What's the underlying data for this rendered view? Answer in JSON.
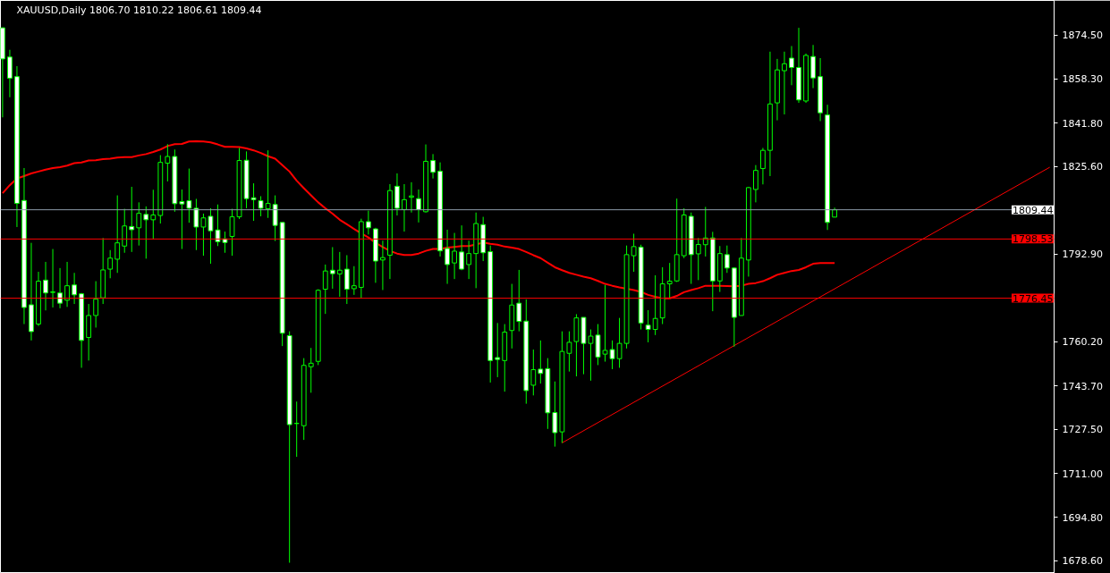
{
  "chart_data": {
    "type": "candlestick",
    "title": "XAUUSD,Daily  1806.70 1810.22 1806.61 1809.44",
    "categories": [
      null,
      null,
      null,
      null,
      null,
      null,
      null,
      null,
      null,
      null,
      null,
      null,
      null,
      null,
      null,
      null,
      null,
      null,
      null,
      null,
      null,
      null,
      null,
      null,
      null,
      null,
      null,
      null,
      null,
      null,
      null,
      null,
      null,
      null,
      null,
      null,
      null,
      null,
      null,
      null,
      null,
      null,
      null,
      null,
      null,
      null,
      null,
      null,
      null,
      null,
      null,
      null,
      null,
      null,
      null,
      null,
      null,
      null,
      null,
      null,
      null,
      null,
      null,
      null,
      null,
      null,
      null,
      null,
      null,
      null,
      null,
      null,
      null,
      null,
      null,
      null,
      null,
      null,
      null,
      null,
      null,
      null,
      null,
      null,
      null,
      null,
      null,
      null,
      null,
      null,
      null,
      null,
      null,
      null,
      null,
      null,
      null,
      null,
      null,
      null,
      null,
      null,
      null,
      null,
      null,
      null,
      null,
      null,
      null,
      null,
      null,
      null,
      null,
      null,
      null,
      null,
      null,
      null,
      null,
      null,
      null,
      null,
      null,
      null,
      null,
      null,
      null,
      null,
      null,
      null,
      null,
      null,
      null,
      null,
      null,
      null,
      null,
      null,
      null,
      null,
      null,
      null,
      null,
      null,
      null,
      null,
      null
    ],
    "color": "#00ff00",
    "ohlc": [
      [
        1877.3,
        1877.3,
        1843.9,
        1865.7
      ],
      [
        1866.4,
        1869.1,
        1851.4,
        1858.5
      ],
      [
        1859.1,
        1863.0,
        1803.0,
        1811.8
      ],
      [
        1812.9,
        1825.0,
        1766.8,
        1773.0
      ],
      [
        1774.0,
        1797.1,
        1760.7,
        1764.0
      ],
      [
        1766.8,
        1786.3,
        1766.1,
        1782.8
      ],
      [
        1783.2,
        1790.0,
        1771.9,
        1778.4
      ],
      [
        1778.6,
        1794.8,
        1773.0,
        1778.8
      ],
      [
        1778.4,
        1787.7,
        1772.7,
        1774.6
      ],
      [
        1775.7,
        1790.0,
        1773.2,
        1781.1
      ],
      [
        1781.4,
        1785.9,
        1774.3,
        1777.7
      ],
      [
        1778.1,
        1778.4,
        1750.5,
        1760.7
      ],
      [
        1761.8,
        1774.3,
        1753.2,
        1770.0
      ],
      [
        1770.0,
        1782.8,
        1765.5,
        1776.1
      ],
      [
        1776.6,
        1798.9,
        1774.3,
        1787.0
      ],
      [
        1787.3,
        1794.4,
        1783.9,
        1791.4
      ],
      [
        1791.0,
        1814.8,
        1785.9,
        1797.1
      ],
      [
        1795.9,
        1809.8,
        1793.4,
        1803.4
      ],
      [
        1803.2,
        1818.0,
        1793.7,
        1802.0
      ],
      [
        1802.7,
        1812.2,
        1796.1,
        1808.1
      ],
      [
        1807.7,
        1810.7,
        1791.2,
        1805.7
      ],
      [
        1805.7,
        1816.9,
        1798.6,
        1807.5
      ],
      [
        1807.3,
        1829.8,
        1804.3,
        1827.1
      ],
      [
        1826.8,
        1833.9,
        1820.0,
        1829.3
      ],
      [
        1829.3,
        1831.9,
        1808.7,
        1811.7
      ],
      [
        1812.5,
        1817.0,
        1794.8,
        1811.6
      ],
      [
        1812.8,
        1824.8,
        1804.6,
        1810.0
      ],
      [
        1810.0,
        1813.5,
        1794.4,
        1803.0
      ],
      [
        1803.0,
        1808.0,
        1792.3,
        1806.4
      ],
      [
        1807.0,
        1810.0,
        1789.3,
        1801.6
      ],
      [
        1801.9,
        1811.4,
        1795.9,
        1797.5
      ],
      [
        1798.6,
        1801.3,
        1793.4,
        1797.2
      ],
      [
        1799.5,
        1809.8,
        1792.3,
        1806.8
      ],
      [
        1806.8,
        1832.5,
        1806.0,
        1827.8
      ],
      [
        1827.9,
        1831.2,
        1810.0,
        1813.6
      ],
      [
        1813.9,
        1819.3,
        1805.3,
        1813.2
      ],
      [
        1812.8,
        1814.5,
        1807.0,
        1810.0
      ],
      [
        1809.8,
        1831.6,
        1806.4,
        1811.8
      ],
      [
        1811.4,
        1814.8,
        1797.8,
        1803.6
      ],
      [
        1804.7,
        1804.7,
        1758.6,
        1763.4
      ],
      [
        1762.5,
        1764.1,
        1677.8,
        1729.3
      ],
      [
        1729.7,
        1737.9,
        1717.3,
        1729.8
      ],
      [
        1728.9,
        1754.1,
        1723.6,
        1751.4
      ],
      [
        1750.9,
        1757.9,
        1741.2,
        1752.2
      ],
      [
        1752.9,
        1779.8,
        1751.5,
        1779.4
      ],
      [
        1779.8,
        1789.0,
        1770.6,
        1786.6
      ],
      [
        1786.9,
        1795.5,
        1780.0,
        1785.6
      ],
      [
        1785.5,
        1793.7,
        1777.0,
        1786.9
      ],
      [
        1787.3,
        1792.5,
        1774.3,
        1779.8
      ],
      [
        1780.0,
        1788.4,
        1777.7,
        1781.1
      ],
      [
        1780.5,
        1806.1,
        1776.4,
        1805.0
      ],
      [
        1805.0,
        1809.1,
        1800.2,
        1802.7
      ],
      [
        1802.3,
        1802.7,
        1782.2,
        1790.3
      ],
      [
        1790.7,
        1797.9,
        1779.5,
        1791.6
      ],
      [
        1792.5,
        1819.0,
        1783.6,
        1816.6
      ],
      [
        1818.2,
        1823.0,
        1807.3,
        1810.0
      ],
      [
        1809.5,
        1819.0,
        1801.3,
        1813.2
      ],
      [
        1814.1,
        1819.7,
        1808.4,
        1814.6
      ],
      [
        1813.6,
        1817.0,
        1804.7,
        1809.5
      ],
      [
        1808.7,
        1833.8,
        1808.4,
        1827.5
      ],
      [
        1827.8,
        1830.2,
        1821.1,
        1823.4
      ],
      [
        1823.8,
        1827.1,
        1792.0,
        1794.1
      ],
      [
        1795.0,
        1802.0,
        1781.8,
        1789.0
      ],
      [
        1789.6,
        1800.8,
        1783.6,
        1794.0
      ],
      [
        1793.7,
        1803.6,
        1786.9,
        1787.3
      ],
      [
        1789.0,
        1797.9,
        1783.6,
        1793.1
      ],
      [
        1793.1,
        1808.4,
        1780.2,
        1804.3
      ],
      [
        1803.9,
        1806.8,
        1790.3,
        1793.4
      ],
      [
        1793.8,
        1796.1,
        1745.0,
        1753.2
      ],
      [
        1754.3,
        1767.2,
        1747.0,
        1753.6
      ],
      [
        1753.2,
        1766.8,
        1741.6,
        1763.8
      ],
      [
        1764.4,
        1781.8,
        1757.7,
        1773.9
      ],
      [
        1774.6,
        1787.0,
        1764.1,
        1767.8
      ],
      [
        1767.9,
        1776.0,
        1737.1,
        1742.0
      ],
      [
        1744.0,
        1757.3,
        1740.2,
        1749.8
      ],
      [
        1750.0,
        1760.7,
        1744.6,
        1748.4
      ],
      [
        1750.2,
        1754.1,
        1727.7,
        1733.7
      ],
      [
        1733.8,
        1745.4,
        1721.1,
        1726.3
      ],
      [
        1726.6,
        1764.1,
        1722.5,
        1756.6
      ],
      [
        1755.9,
        1764.1,
        1749.1,
        1760.0
      ],
      [
        1760.3,
        1770.5,
        1747.3,
        1769.1
      ],
      [
        1769.3,
        1769.3,
        1748.1,
        1759.6
      ],
      [
        1759.6,
        1764.8,
        1745.7,
        1762.3
      ],
      [
        1762.7,
        1766.8,
        1751.5,
        1754.5
      ],
      [
        1755.6,
        1781.4,
        1752.8,
        1757.0
      ],
      [
        1757.3,
        1760.7,
        1750.0,
        1753.9
      ],
      [
        1753.9,
        1769.1,
        1750.5,
        1759.6
      ],
      [
        1759.6,
        1796.1,
        1757.7,
        1792.7
      ],
      [
        1792.3,
        1800.5,
        1786.3,
        1795.7
      ],
      [
        1795.5,
        1796.4,
        1764.8,
        1767.2
      ],
      [
        1766.4,
        1772.0,
        1760.0,
        1764.8
      ],
      [
        1764.8,
        1785.0,
        1762.7,
        1768.9
      ],
      [
        1769.1,
        1788.0,
        1766.8,
        1781.8
      ],
      [
        1781.8,
        1789.6,
        1776.4,
        1782.8
      ],
      [
        1782.9,
        1813.6,
        1782.5,
        1792.7
      ],
      [
        1792.3,
        1810.0,
        1791.4,
        1807.5
      ],
      [
        1807.0,
        1808.4,
        1781.8,
        1792.7
      ],
      [
        1793.0,
        1798.9,
        1783.2,
        1796.5
      ],
      [
        1796.4,
        1810.5,
        1792.0,
        1798.9
      ],
      [
        1798.9,
        1801.2,
        1771.6,
        1782.9
      ],
      [
        1782.9,
        1795.9,
        1778.8,
        1793.1
      ],
      [
        1792.7,
        1796.1,
        1785.9,
        1787.7
      ],
      [
        1787.7,
        1788.0,
        1758.4,
        1769.3
      ],
      [
        1770.0,
        1798.9,
        1770.0,
        1791.4
      ],
      [
        1790.7,
        1818.0,
        1784.5,
        1817.7
      ],
      [
        1817.0,
        1826.1,
        1812.2,
        1824.1
      ],
      [
        1824.8,
        1832.5,
        1818.9,
        1831.6
      ],
      [
        1831.6,
        1868.4,
        1822.0,
        1848.9
      ],
      [
        1849.3,
        1865.7,
        1842.8,
        1861.6
      ],
      [
        1861.3,
        1868.4,
        1845.0,
        1863.9
      ],
      [
        1866.0,
        1870.5,
        1855.9,
        1862.5
      ],
      [
        1862.5,
        1877.3,
        1849.3,
        1850.4
      ],
      [
        1850.0,
        1867.7,
        1849.3,
        1867.0
      ],
      [
        1866.6,
        1870.9,
        1854.8,
        1858.6
      ],
      [
        1859.1,
        1866.0,
        1842.5,
        1845.6
      ],
      [
        1844.8,
        1848.6,
        1801.9,
        1804.7
      ],
      [
        1806.7,
        1810.22,
        1806.61,
        1809.44
      ],
      null,
      null,
      null,
      null,
      null,
      null,
      null,
      null,
      null,
      null,
      null,
      null,
      null,
      null,
      null,
      null,
      null,
      null,
      null,
      null,
      null,
      null,
      null,
      null,
      null,
      null,
      null,
      null,
      null,
      null
    ],
    "series": [
      {
        "type": "line",
        "color": "#ff0000",
        "values": [
          1815.6,
          1818.6,
          1821.1,
          1822.0,
          1823.0,
          1823.7,
          1824.4,
          1825.0,
          1825.3,
          1825.9,
          1826.8,
          1827.1,
          1827.8,
          1827.9,
          1828.3,
          1828.5,
          1828.9,
          1829.1,
          1829.1,
          1829.7,
          1830.2,
          1831.0,
          1831.9,
          1833.2,
          1833.9,
          1834.0,
          1834.9,
          1835.0,
          1834.9,
          1834.6,
          1833.8,
          1832.9,
          1832.9,
          1832.8,
          1832.3,
          1831.6,
          1830.6,
          1829.4,
          1828.5,
          1826.1,
          1823.7,
          1820.3,
          1817.5,
          1814.8,
          1812.2,
          1810.0,
          1808.0,
          1805.7,
          1804.0,
          1802.3,
          1800.6,
          1799.1,
          1797.1,
          1795.5,
          1794.1,
          1793.1,
          1792.6,
          1792.6,
          1793.1,
          1794.1,
          1794.8,
          1794.8,
          1795.3,
          1795.6,
          1795.9,
          1795.9,
          1796.5,
          1797.2,
          1796.7,
          1796.4,
          1795.7,
          1795.3,
          1794.8,
          1793.7,
          1792.5,
          1791.4,
          1789.7,
          1788.0,
          1786.9,
          1785.9,
          1785.2,
          1784.5,
          1783.9,
          1782.9,
          1781.8,
          1781.1,
          1780.5,
          1780.0,
          1779.5,
          1778.8,
          1777.7,
          1777.0,
          1776.4,
          1776.4,
          1777.3,
          1778.7,
          1779.5,
          1780.2,
          1781.1,
          1781.1,
          1781.1,
          1781.0,
          1780.9,
          1781.1,
          1781.8,
          1782.1,
          1782.8,
          1783.9,
          1785.2,
          1785.9,
          1786.6,
          1787.0,
          1788.0,
          1789.3,
          1789.6,
          1789.6,
          1789.6,
          null,
          null,
          null,
          null,
          null,
          null,
          null,
          null,
          null,
          null,
          null,
          null,
          null,
          null,
          null,
          null,
          null,
          null,
          null,
          null,
          null,
          null,
          null,
          null,
          null,
          null,
          null,
          null,
          null,
          null
        ]
      },
      {
        "type": "line",
        "color": "#ff0000",
        "values": [
          null,
          null,
          null,
          null,
          null,
          null,
          null,
          null,
          null,
          null,
          null,
          null,
          null,
          null,
          null,
          null,
          null,
          null,
          null,
          null,
          null,
          null,
          null,
          null,
          null,
          null,
          null,
          null,
          null,
          null,
          null,
          null,
          null,
          null,
          null,
          null,
          null,
          null,
          null,
          null,
          null,
          null,
          null,
          null,
          null,
          null,
          null,
          null,
          null,
          null,
          null,
          null,
          null,
          null,
          null,
          null,
          null,
          null,
          null,
          null,
          null,
          null,
          null,
          null,
          null,
          null,
          null,
          null,
          null,
          null,
          null,
          null,
          null,
          null,
          null,
          null,
          null,
          null,
          1722.5,
          null,
          null,
          null,
          null,
          null,
          null,
          null,
          null,
          null,
          null,
          null,
          null,
          null,
          null,
          null,
          null,
          null,
          null,
          null,
          null,
          null,
          null,
          null,
          null,
          null,
          null,
          null,
          null,
          null,
          null,
          null,
          null,
          null,
          null,
          null,
          null,
          null,
          null,
          null,
          null,
          null,
          null,
          null,
          null,
          null,
          null,
          null,
          null,
          null,
          null,
          null,
          null,
          null,
          null,
          null,
          null,
          null,
          null,
          null,
          null,
          null,
          null,
          null,
          null,
          null,
          null,
          null,
          1825.3
        ]
      }
    ],
    "ref_lines": [
      {
        "axis": "y",
        "value": 1809.44,
        "label": "1809.44",
        "color": "#8c9aa8"
      },
      {
        "axis": "y",
        "value": 1798.53,
        "label": "1798.53",
        "color": "#ff0000"
      },
      {
        "axis": "y",
        "value": 1776.45,
        "label": "1776.45",
        "color": "#ff0000"
      }
    ],
    "ylim": [
      1673.8,
      1887.5
    ],
    "yticks": [
      {
        "value": 1874.5,
        "label": "1874.50"
      },
      {
        "value": 1858.3,
        "label": "1858.30"
      },
      {
        "value": 1841.8,
        "label": "1841.80"
      },
      {
        "value": 1825.6,
        "label": "1825.60"
      },
      {
        "value": 1792.9,
        "label": "1792.90"
      },
      {
        "value": 1760.2,
        "label": "1760.20"
      },
      {
        "value": 1743.7,
        "label": "1743.70"
      },
      {
        "value": 1727.5,
        "label": "1727.50"
      },
      {
        "value": 1711.0,
        "label": "1711.00"
      },
      {
        "value": 1694.8,
        "label": "1694.80"
      },
      {
        "value": 1678.6,
        "label": "1678.60"
      }
    ],
    "tick_labels": "y",
    "grid": false
  }
}
